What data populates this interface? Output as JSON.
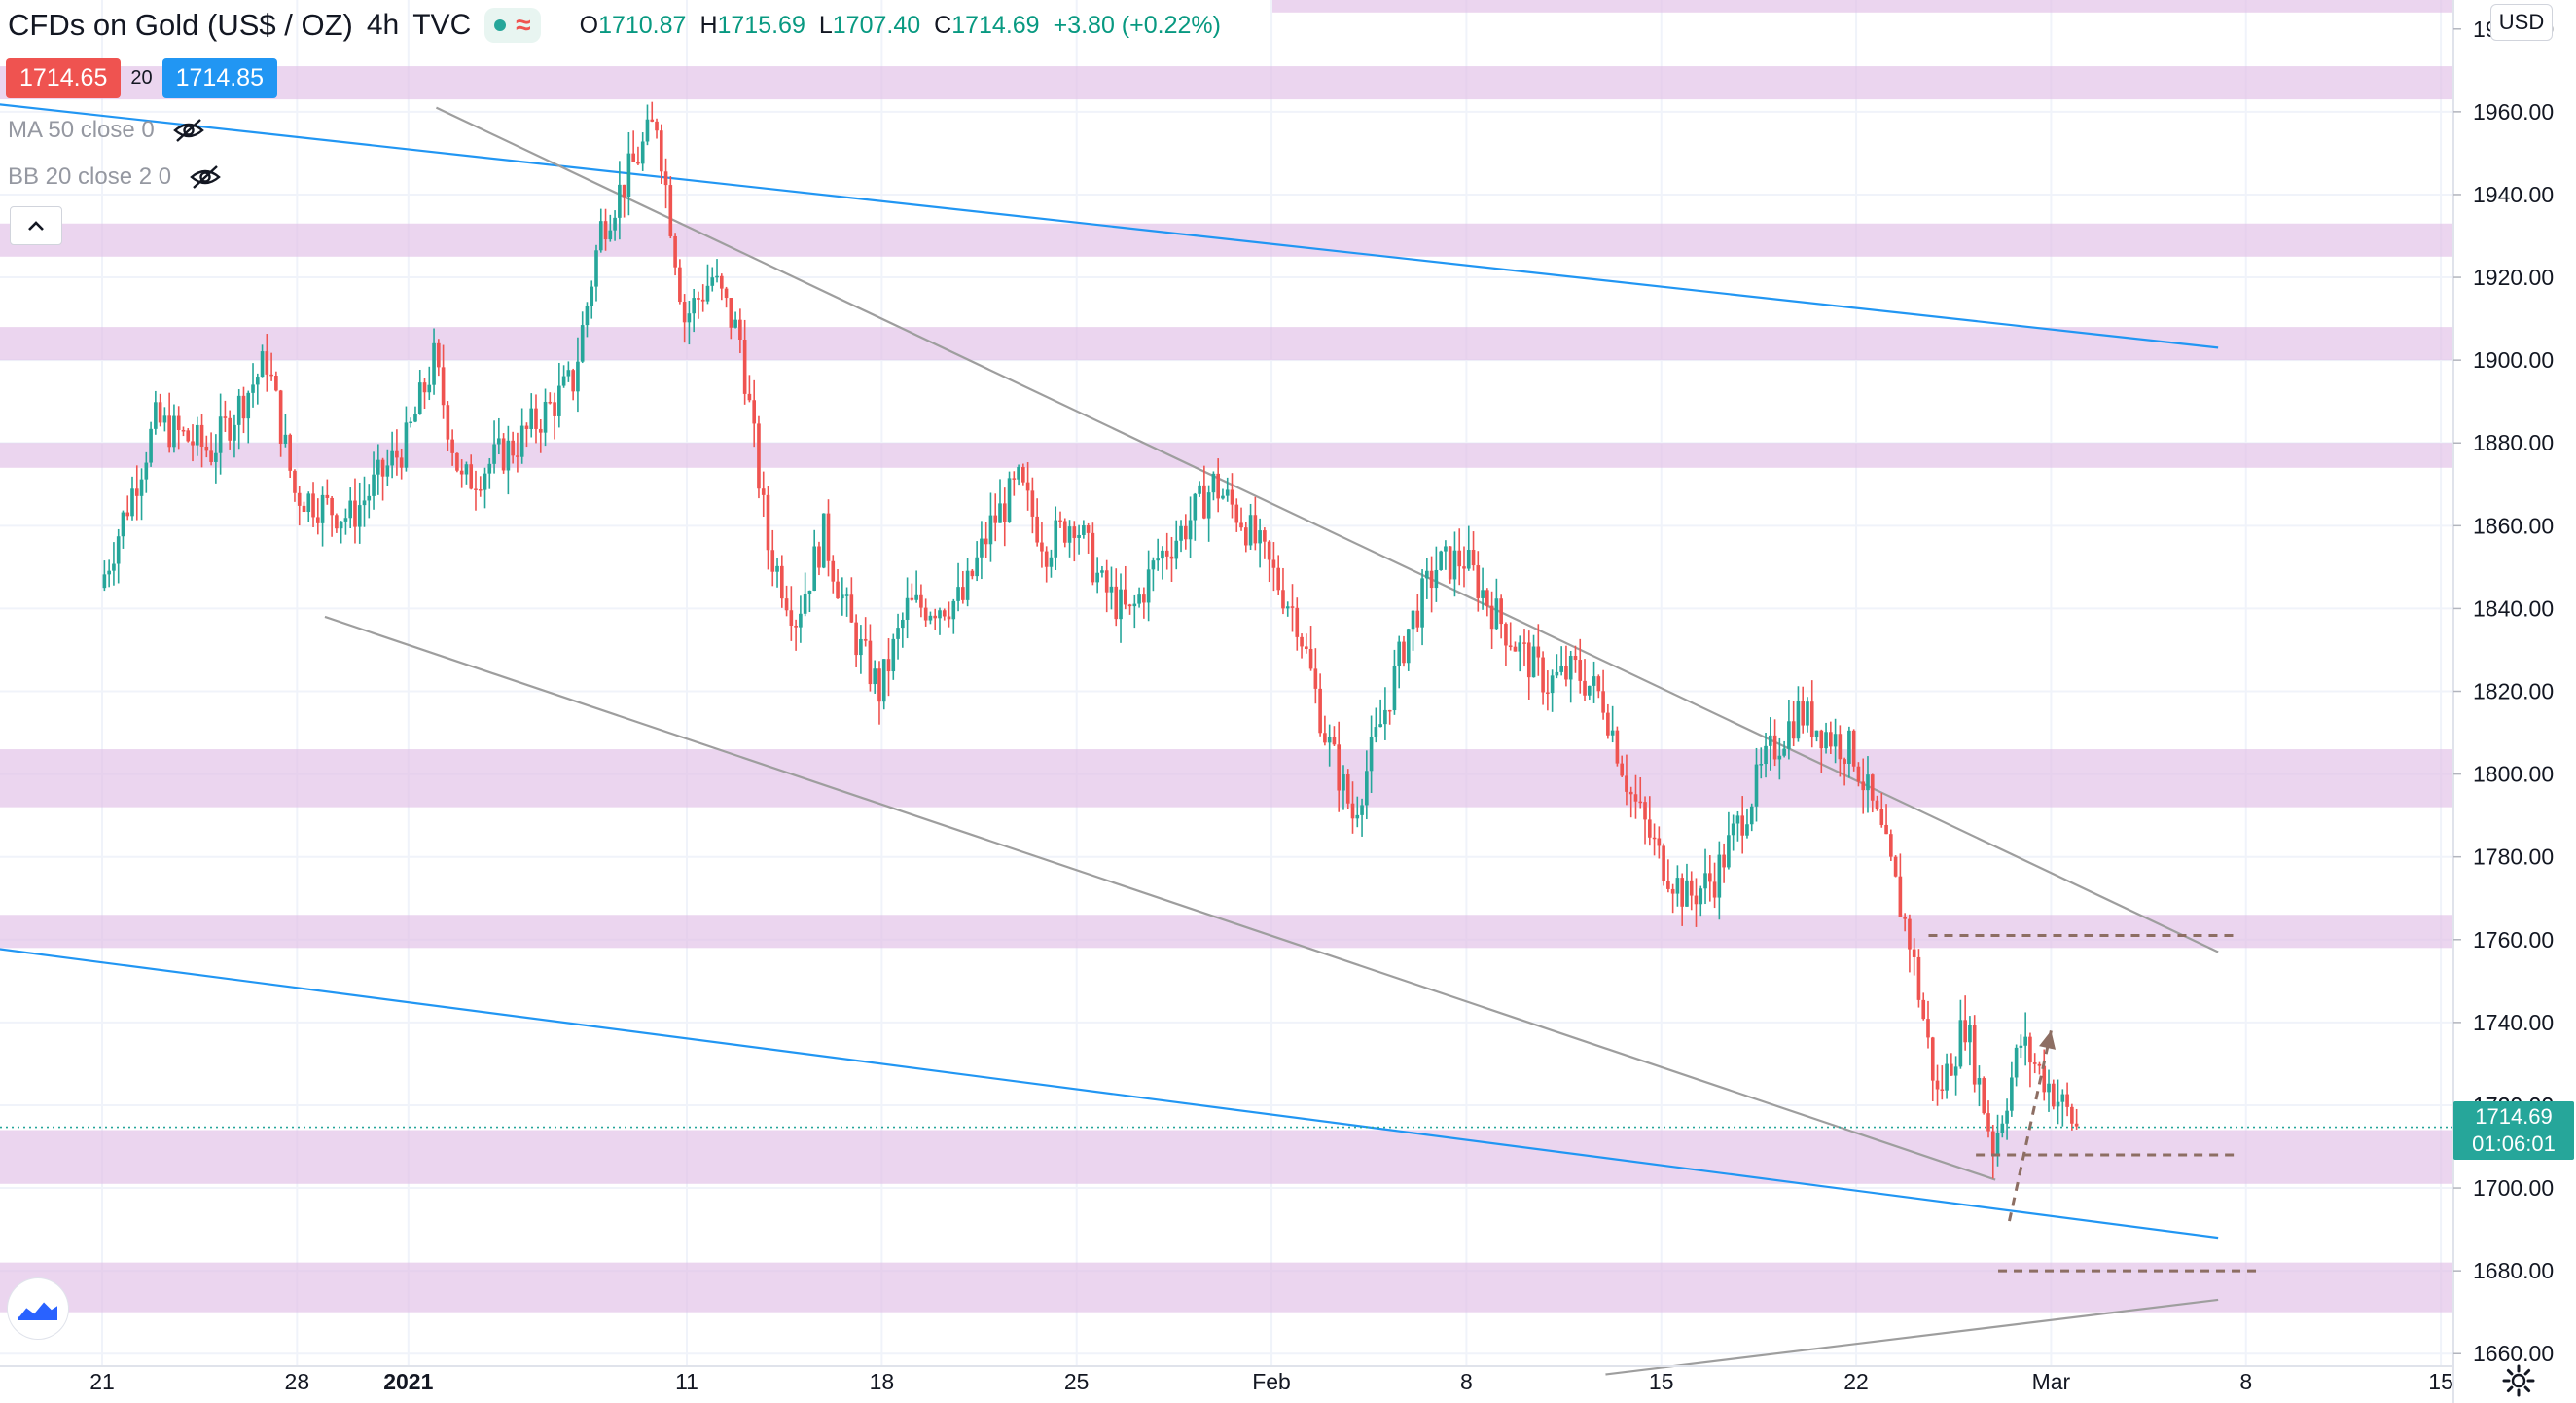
{
  "header": {
    "symbol": "CFDs on Gold (US$ / OZ)",
    "interval": "4h",
    "source": "TVC",
    "open_label": "O",
    "open": "1710.87",
    "high_label": "H",
    "high": "1715.69",
    "low_label": "L",
    "low": "1707.40",
    "close_label": "C",
    "close": "1714.69",
    "change": "+3.80 (+0.22%)"
  },
  "trade": {
    "sell_price": "1714.65",
    "spread": "20",
    "buy_price": "1714.85"
  },
  "indicators": [
    {
      "label": "MA 50 close 0",
      "icon": "eye-hidden-icon"
    },
    {
      "label": "BB 20 close 2 0",
      "icon": "eye-hidden-icon"
    }
  ],
  "currency": "USD",
  "last_price": {
    "price": "1714.69",
    "countdown": "01:06:01"
  },
  "colors": {
    "up": "#26a69a",
    "down": "#ef5350",
    "zone": "#e1bee7",
    "channel": "#2196f3",
    "trend": "#9e9e9e",
    "dashed": "#8d6e63",
    "text": "#131722",
    "buy": "#2196f3",
    "sell": "#ef5350"
  },
  "chart_data": {
    "type": "candlestick",
    "title": "CFDs on Gold (US$ / OZ) · 4h · TVC",
    "y_unit": "USD",
    "ylim": [
      1657,
      1987
    ],
    "y_ticks": [
      "1960.00",
      "1940.00",
      "1920.00",
      "1900.00",
      "1880.00",
      "1860.00",
      "1840.00",
      "1820.00",
      "1800.00",
      "1780.00",
      "1760.00",
      "1740.00",
      "1720.00",
      "1700.00",
      "1680.00",
      "1660.00"
    ],
    "y_top_partial_label": "1980.00",
    "x_labels": [
      "21",
      "28",
      "2021",
      "11",
      "18",
      "25",
      "Feb",
      "8",
      "15",
      "22",
      "Mar",
      "8",
      "15"
    ],
    "x_label_index": [
      0,
      7,
      11,
      21,
      28,
      35,
      42,
      49,
      56,
      63,
      70,
      77,
      84
    ],
    "series_price_path": [
      [
        0,
        1845
      ],
      [
        2,
        1885
      ],
      [
        4,
        1878
      ],
      [
        6,
        1900
      ],
      [
        7,
        1868
      ],
      [
        9,
        1862
      ],
      [
        11,
        1880
      ],
      [
        12,
        1900
      ],
      [
        13,
        1870
      ],
      [
        15,
        1880
      ],
      [
        17,
        1895
      ],
      [
        18,
        1932
      ],
      [
        19,
        1945
      ],
      [
        20,
        1958
      ],
      [
        21,
        1910
      ],
      [
        22,
        1920
      ],
      [
        23,
        1905
      ],
      [
        24,
        1855
      ],
      [
        25,
        1838
      ],
      [
        26,
        1858
      ],
      [
        27,
        1835
      ],
      [
        28,
        1820
      ],
      [
        29,
        1840
      ],
      [
        31,
        1842
      ],
      [
        32,
        1860
      ],
      [
        33,
        1870
      ],
      [
        34,
        1855
      ],
      [
        35,
        1862
      ],
      [
        36,
        1845
      ],
      [
        37,
        1838
      ],
      [
        38,
        1852
      ],
      [
        39,
        1860
      ],
      [
        40,
        1870
      ],
      [
        41,
        1862
      ],
      [
        42,
        1850
      ],
      [
        43,
        1838
      ],
      [
        44,
        1810
      ],
      [
        45,
        1790
      ],
      [
        46,
        1812
      ],
      [
        47,
        1835
      ],
      [
        48,
        1850
      ],
      [
        49,
        1852
      ],
      [
        50,
        1840
      ],
      [
        51,
        1830
      ],
      [
        52,
        1822
      ],
      [
        53,
        1825
      ],
      [
        54,
        1818
      ],
      [
        55,
        1795
      ],
      [
        56,
        1780
      ],
      [
        57,
        1770
      ],
      [
        58,
        1775
      ],
      [
        59,
        1790
      ],
      [
        60,
        1805
      ],
      [
        61,
        1815
      ],
      [
        62,
        1810
      ],
      [
        63,
        1805
      ],
      [
        64,
        1785
      ],
      [
        65,
        1760
      ],
      [
        66,
        1722
      ],
      [
        67,
        1740
      ],
      [
        68,
        1710
      ],
      [
        69,
        1735
      ],
      [
        70,
        1725
      ],
      [
        71,
        1714.69
      ]
    ],
    "zones": [
      [
        1963,
        1971
      ],
      [
        1925,
        1933
      ],
      [
        1900,
        1908
      ],
      [
        1874,
        1880
      ],
      [
        1792,
        1806
      ],
      [
        1758,
        1766
      ],
      [
        1701,
        1714
      ],
      [
        1670,
        1682
      ]
    ],
    "support_resistance_levels": [
      1761,
      1708,
      1680
    ],
    "channel_lines": [
      {
        "from": [
          -4,
          1962
        ],
        "to": [
          76,
          1903
        ]
      },
      {
        "from": [
          -4,
          1758
        ],
        "to": [
          76,
          1688
        ]
      }
    ],
    "trend_lines": [
      {
        "from": [
          12,
          1961
        ],
        "to": [
          76,
          1757
        ]
      },
      {
        "from": [
          8,
          1838
        ],
        "to": [
          68,
          1702
        ]
      },
      {
        "from": [
          54,
          1655
        ],
        "to": [
          76,
          1673
        ]
      }
    ],
    "projection_arrow": {
      "from": [
        68.5,
        1692
      ],
      "to": [
        70,
        1738
      ]
    },
    "last_price_line": 1714.69
  }
}
